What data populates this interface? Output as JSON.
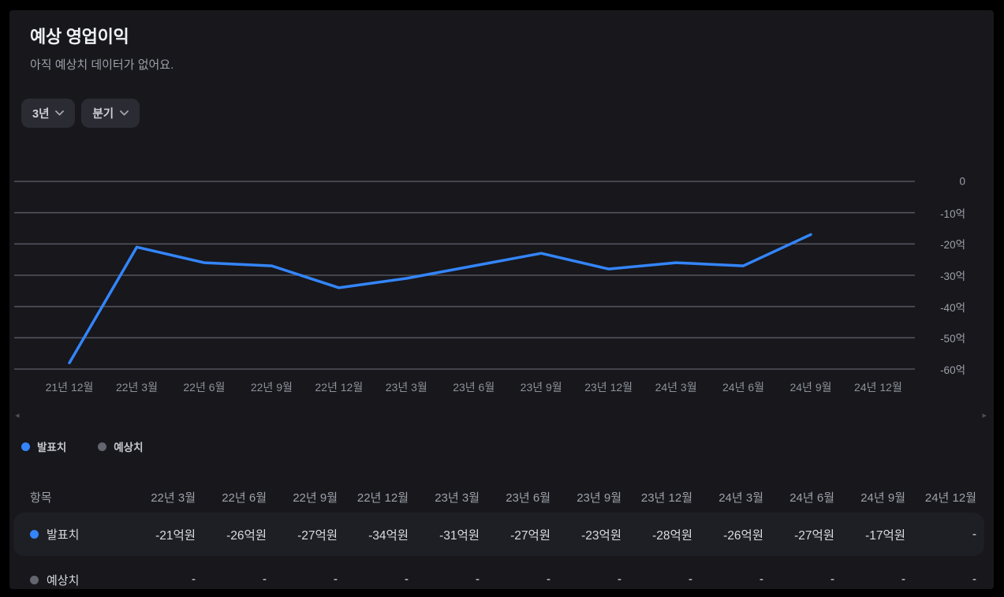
{
  "header": {
    "title": "예상 영업이익",
    "subtitle": "아직 예상치 데이터가 없어요.",
    "filters": [
      {
        "label": "3년",
        "icon": "chevron-down-icon"
      },
      {
        "label": "분기",
        "icon": "chevron-down-icon"
      }
    ]
  },
  "chart_data": {
    "type": "line",
    "title": "예상 영업이익",
    "categories": [
      "21년 12월",
      "22년 3월",
      "22년 6월",
      "22년 9월",
      "22년 12월",
      "23년 3월",
      "23년 6월",
      "23년 9월",
      "23년 12월",
      "24년 3월",
      "24년 6월",
      "24년 9월",
      "24년 12월"
    ],
    "series": [
      {
        "name": "발표치",
        "color": "#3485fa",
        "values": [
          -58,
          -21,
          -26,
          -27,
          -34,
          -31,
          -27,
          -23,
          -28,
          -26,
          -27,
          -17,
          null
        ]
      },
      {
        "name": "예상치",
        "color": "#63666e",
        "values": [
          null,
          null,
          null,
          null,
          null,
          null,
          null,
          null,
          null,
          null,
          null,
          null,
          null
        ]
      }
    ],
    "unit": "억원",
    "ylim": [
      -60,
      0
    ],
    "yticks": [
      {
        "value": 0,
        "label": "0"
      },
      {
        "value": -10,
        "label": "-10억"
      },
      {
        "value": -20,
        "label": "-20억"
      },
      {
        "value": -30,
        "label": "-30억"
      },
      {
        "value": -40,
        "label": "-40억"
      },
      {
        "value": -50,
        "label": "-50억"
      },
      {
        "value": -60,
        "label": "-60억"
      }
    ],
    "grid": true,
    "legend_position": "bottom-left"
  },
  "scroller": {
    "left_arrow": "◂",
    "right_arrow": "▸"
  },
  "legend": {
    "items": [
      {
        "label": "발표치",
        "color": "#3485fa"
      },
      {
        "label": "예상치",
        "color": "#63666e"
      }
    ]
  },
  "table": {
    "item_column_header": "항목",
    "columns": [
      "22년 3월",
      "22년 6월",
      "22년 9월",
      "22년 12월",
      "23년 3월",
      "23년 6월",
      "23년 9월",
      "23년 12월",
      "24년 3월",
      "24년 6월",
      "24년 9월",
      "24년 12월"
    ],
    "rows": [
      {
        "label": "발표치",
        "dot_color": "#3485fa",
        "highlight": true,
        "values": [
          "-21억원",
          "-26억원",
          "-27억원",
          "-34억원",
          "-31억원",
          "-27억원",
          "-23억원",
          "-28억원",
          "-26억원",
          "-27억원",
          "-17억원",
          "-"
        ]
      },
      {
        "label": "예상치",
        "dot_color": "#63666e",
        "highlight": false,
        "values": [
          "-",
          "-",
          "-",
          "-",
          "-",
          "-",
          "-",
          "-",
          "-",
          "-",
          "-",
          "-"
        ]
      }
    ]
  },
  "colors": {
    "frame": "#000000",
    "card_bg": "#17171c",
    "accent_blue": "#3485fa",
    "muted_dot": "#63666e",
    "gridline": "#53535c",
    "highlight_row": "#1e1f25"
  }
}
